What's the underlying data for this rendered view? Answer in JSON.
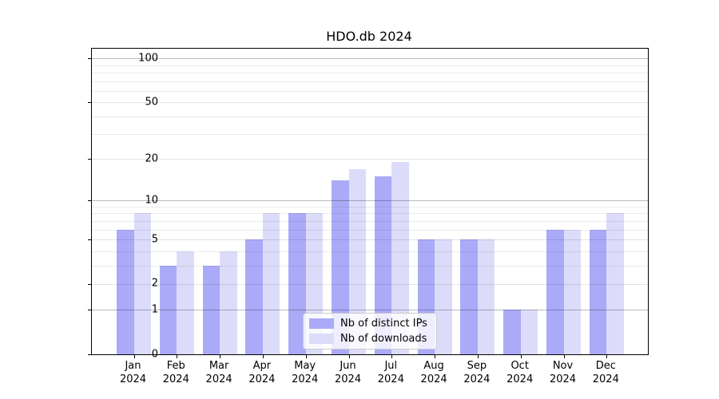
{
  "chart_data": {
    "type": "bar",
    "title": "HDO.db 2024",
    "categories": [
      "Jan 2024",
      "Feb 2024",
      "Mar 2024",
      "Apr 2024",
      "May 2024",
      "Jun 2024",
      "Jul 2024",
      "Aug 2024",
      "Sep 2024",
      "Oct 2024",
      "Nov 2024",
      "Dec 2024"
    ],
    "series": [
      {
        "name": "Nb of distinct IPs",
        "color": "#aaaaf8",
        "values": [
          6,
          3,
          3,
          5,
          8,
          14,
          15,
          5,
          5,
          1,
          6,
          6
        ]
      },
      {
        "name": "Nb of downloads",
        "color": "#dcdcfa",
        "values": [
          8,
          4,
          4,
          8,
          8,
          17,
          19,
          5,
          5,
          1,
          6,
          8
        ]
      }
    ],
    "y_scale": "log10(1+y)",
    "y_ticks": [
      0,
      1,
      2,
      5,
      10,
      20,
      50,
      100
    ],
    "y_major_gridlines": [
      1,
      10,
      100
    ],
    "y_mid_gridlines": [
      2,
      5,
      20,
      50
    ],
    "y_minor_gridlines": [
      3,
      4,
      6,
      7,
      8,
      9,
      30,
      40,
      60,
      70,
      80,
      90
    ],
    "ylim": [
      0,
      117
    ],
    "grid": true,
    "legend_position": "lower center",
    "xlabel": "",
    "ylabel": ""
  },
  "colors": {
    "axis": "#000000",
    "grid_major": "#b9b9b9",
    "grid_minor": "#e8e8e8",
    "legend_border": "#cccccc",
    "background": "#ffffff"
  }
}
